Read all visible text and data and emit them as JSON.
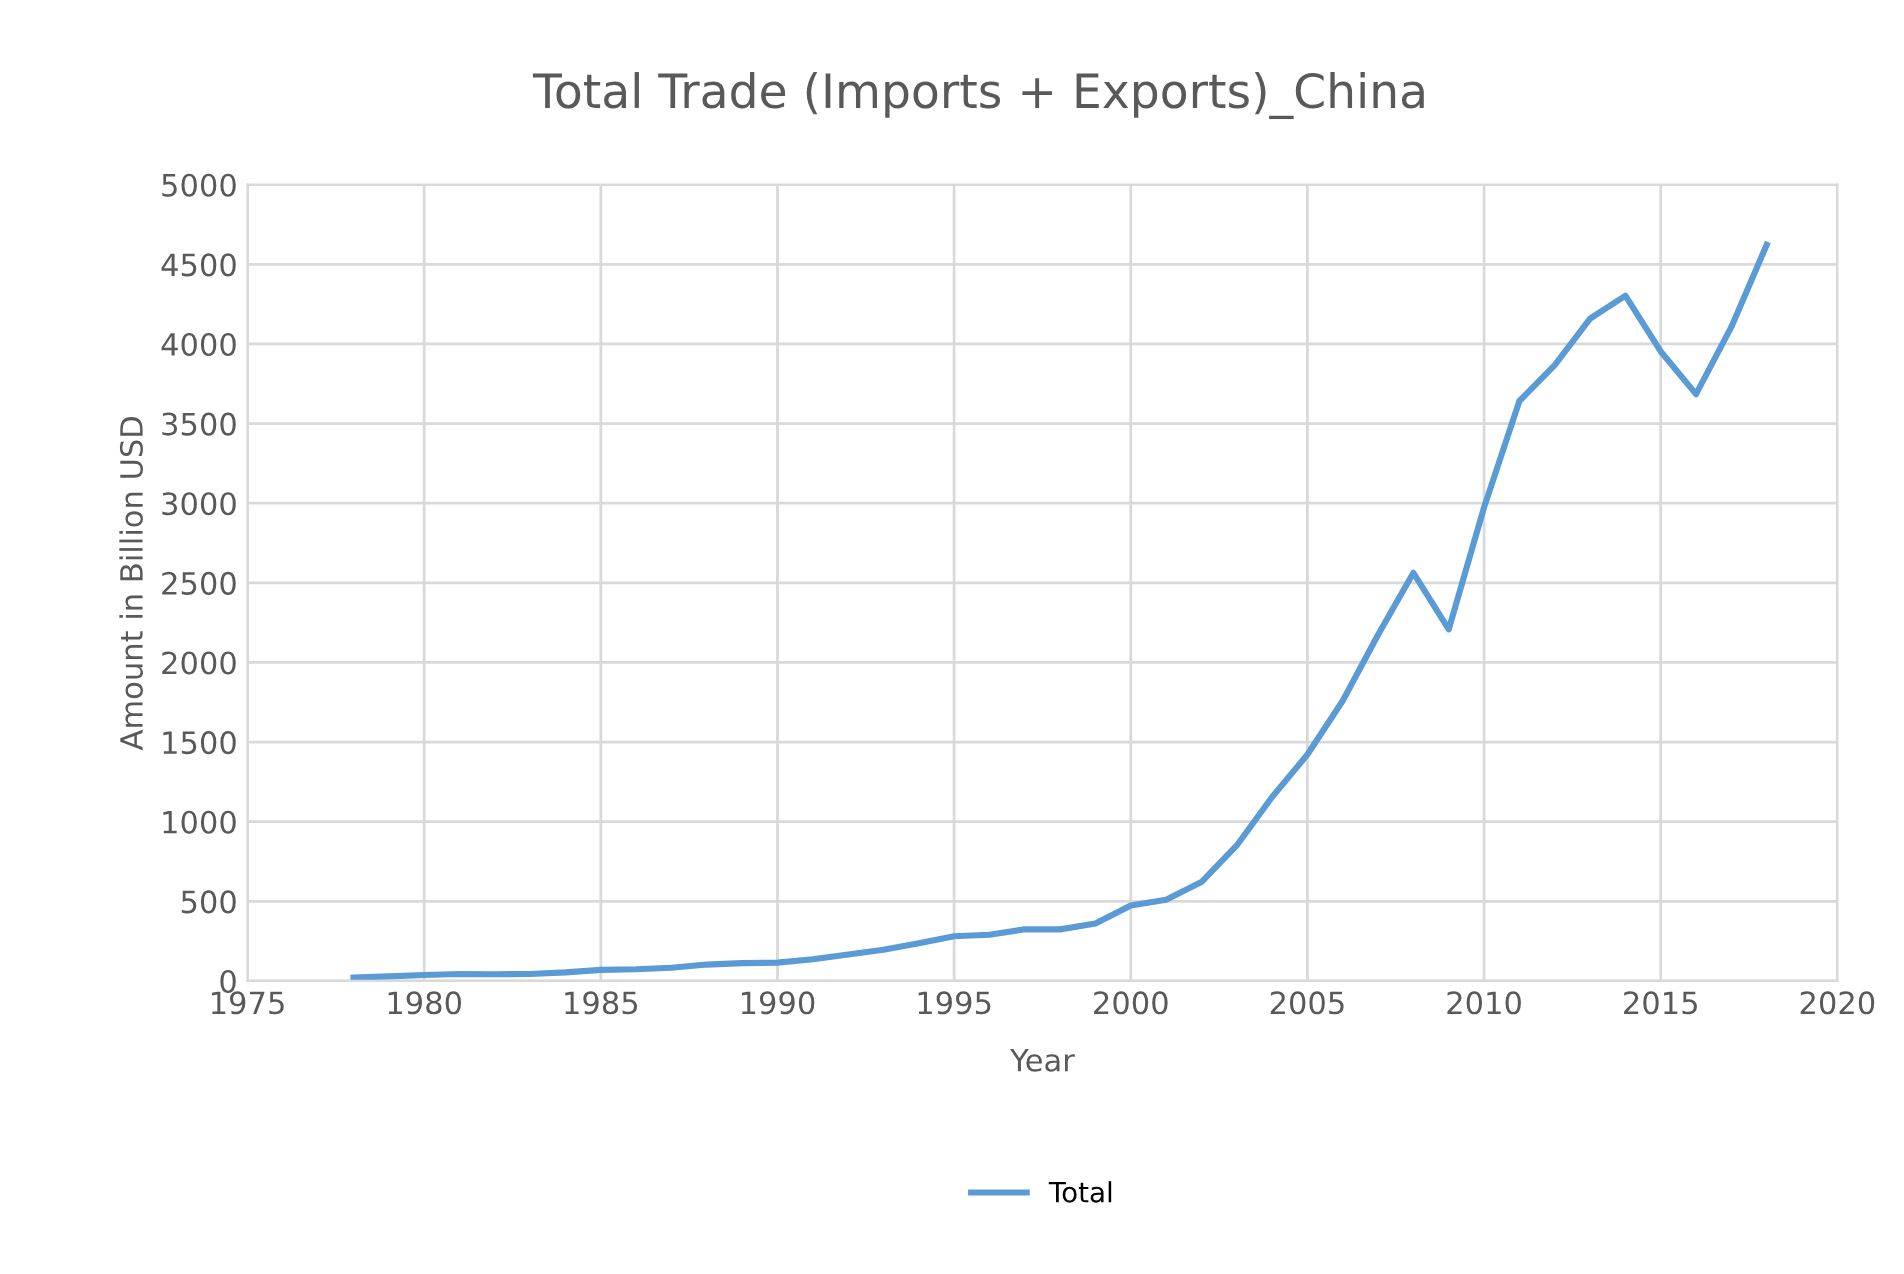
{
  "chart_data": {
    "type": "line",
    "title": "Total Trade (Imports + Exports)_China",
    "xlabel": "Year",
    "ylabel": "Amount in Billion USD",
    "x": [
      1978,
      1979,
      1980,
      1981,
      1982,
      1983,
      1984,
      1985,
      1986,
      1987,
      1988,
      1989,
      1990,
      1991,
      1992,
      1993,
      1994,
      1995,
      1996,
      1997,
      1998,
      1999,
      2000,
      2001,
      2002,
      2003,
      2004,
      2005,
      2006,
      2007,
      2008,
      2009,
      2010,
      2011,
      2012,
      2013,
      2014,
      2015,
      2016,
      2017,
      2018
    ],
    "series": [
      {
        "name": "Total",
        "color": "#5b9bd5",
        "values": [
          21,
          29,
          38,
          44,
          42,
          44,
          54,
          70,
          74,
          83,
          103,
          112,
          115,
          136,
          166,
          196,
          237,
          281,
          290,
          325,
          324,
          361,
          474,
          510,
          621,
          851,
          1155,
          1422,
          1760,
          2174,
          2563,
          2208,
          2974,
          3642,
          3867,
          4159,
          4303,
          3953,
          3685,
          4107,
          4623
        ]
      }
    ],
    "xlim": [
      1975,
      2020
    ],
    "xticks": [
      1975,
      1980,
      1985,
      1990,
      1995,
      2000,
      2005,
      2010,
      2015,
      2020
    ],
    "ylim": [
      0,
      5000
    ],
    "yticks": [
      0,
      500,
      1000,
      1500,
      2000,
      2500,
      3000,
      3500,
      4000,
      4500,
      5000
    ],
    "grid": true,
    "legend": "bottom",
    "marker": "none",
    "line_style": "solid"
  }
}
